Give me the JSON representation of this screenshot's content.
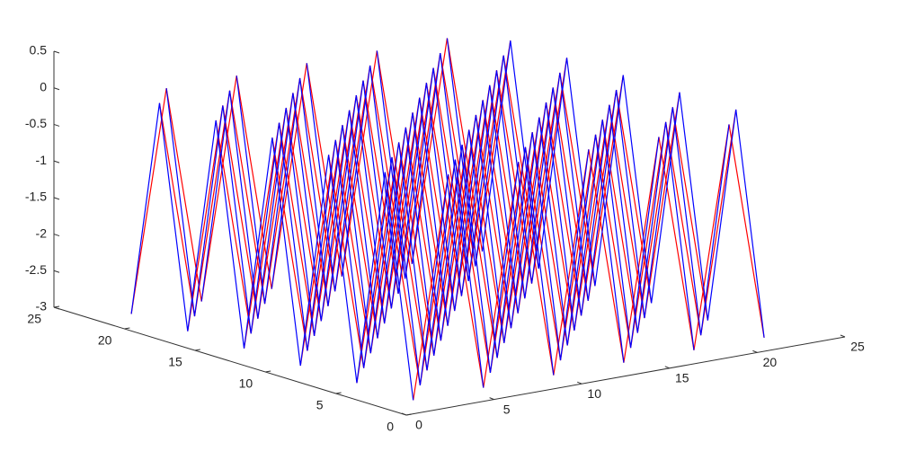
{
  "chart_data": {
    "type": "mesh",
    "x": [
      2,
      4,
      6,
      8,
      10,
      12,
      14,
      16,
      18,
      20,
      22
    ],
    "y": [
      2,
      4,
      6,
      8,
      10,
      12,
      14,
      16,
      18,
      20,
      22
    ],
    "z": [
      [
        -3,
        0,
        -3,
        0,
        -3,
        0,
        -3,
        0,
        -3,
        0,
        -3
      ],
      [
        0,
        -3,
        0,
        -3,
        0,
        -3,
        0,
        -3,
        0,
        -3,
        0
      ],
      [
        -3,
        0,
        -3,
        0,
        -3,
        0,
        -3,
        0,
        -3,
        0,
        -3
      ],
      [
        0,
        -3,
        0,
        -3,
        0,
        -3,
        0,
        -3,
        0,
        -3,
        0
      ],
      [
        -3,
        0,
        -3,
        0,
        -3,
        0,
        -3,
        0,
        -3,
        0,
        -3
      ],
      [
        0,
        -3,
        0,
        -3,
        0,
        -3,
        0,
        -3,
        0,
        -3,
        0
      ],
      [
        -3,
        0,
        -3,
        0,
        -3,
        0,
        -3,
        0,
        -3,
        0,
        -3
      ],
      [
        0,
        -3,
        0,
        -3,
        0,
        -3,
        0,
        -3,
        0,
        -3,
        0
      ],
      [
        -3,
        0,
        -3,
        0,
        -3,
        0,
        -3,
        0,
        -3,
        0,
        -3
      ],
      [
        0,
        -3,
        0,
        -3,
        0,
        -3,
        0,
        -3,
        0,
        -3,
        0
      ],
      [
        -3,
        0,
        -3,
        0,
        -3,
        0,
        -3,
        0,
        -3,
        0,
        -3
      ]
    ],
    "row_color": "#ff0000",
    "column_color": "#0000ff",
    "xlim": [
      0,
      25
    ],
    "xticks": [
      0,
      5,
      10,
      15,
      20,
      25
    ],
    "ylim": [
      0,
      25
    ],
    "yticks": [
      0,
      5,
      10,
      15,
      20,
      25
    ],
    "zlim": [
      -3,
      0.5
    ],
    "zticks": [
      -3,
      -2.5,
      -2,
      -1.5,
      -1,
      -0.5,
      0,
      0.5
    ]
  }
}
